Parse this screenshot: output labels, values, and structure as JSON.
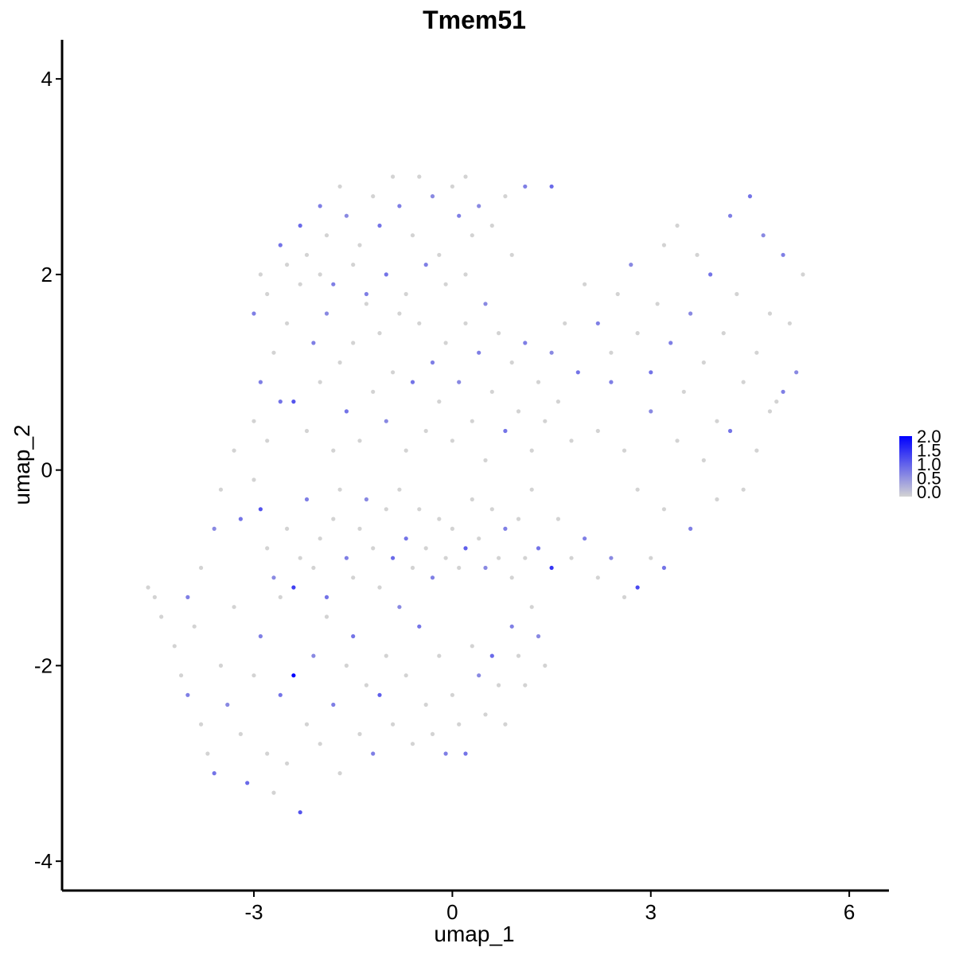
{
  "chart_data": {
    "type": "scatter",
    "title": "Tmem51",
    "xlabel": "umap_1",
    "ylabel": "umap_2",
    "xlim": [
      -5.9,
      6.6
    ],
    "ylim": [
      -4.3,
      4.4
    ],
    "x_ticks": [
      {
        "value": -3,
        "label": "-3"
      },
      {
        "value": 0,
        "label": "0"
      },
      {
        "value": 3,
        "label": "3"
      },
      {
        "value": 6,
        "label": "6"
      }
    ],
    "y_ticks": [
      {
        "value": -4,
        "label": "-4"
      },
      {
        "value": -2,
        "label": "-2"
      },
      {
        "value": 0,
        "label": "0"
      },
      {
        "value": 2,
        "label": "2"
      },
      {
        "value": 4,
        "label": "4"
      }
    ],
    "grid": false,
    "legend_position": "right",
    "color_scale": {
      "low_color": "#d3d3d3",
      "high_color": "#0000ff",
      "min": 0.0,
      "max": 2.0,
      "labels": [
        "2.0",
        "1.5",
        "1.0",
        "0.5",
        "0.0"
      ]
    },
    "points": [
      [
        -4.6,
        -1.2,
        0
      ],
      [
        -4.5,
        -1.3,
        0
      ],
      [
        -4.4,
        -1.5,
        0
      ],
      [
        -4.2,
        -1.8,
        0
      ],
      [
        -4.1,
        -2.1,
        0
      ],
      [
        -4.0,
        -2.3,
        0.8
      ],
      [
        -3.9,
        -1.6,
        0
      ],
      [
        -3.8,
        -2.6,
        0
      ],
      [
        -3.7,
        -2.9,
        0
      ],
      [
        -3.6,
        -3.1,
        0.9
      ],
      [
        -3.5,
        -2.0,
        0
      ],
      [
        -3.4,
        -2.4,
        0.7
      ],
      [
        -3.3,
        -1.4,
        0
      ],
      [
        -3.2,
        -2.7,
        0
      ],
      [
        -3.1,
        -3.2,
        1.0
      ],
      [
        -3.0,
        -2.1,
        0
      ],
      [
        -2.9,
        -1.7,
        0.8
      ],
      [
        -2.8,
        -2.9,
        0
      ],
      [
        -2.7,
        -3.3,
        0
      ],
      [
        -2.6,
        -2.3,
        0.9
      ],
      [
        -2.5,
        -3.0,
        0
      ],
      [
        -2.4,
        -2.1,
        2.0
      ],
      [
        -2.3,
        -3.5,
        1.2
      ],
      [
        -2.2,
        -2.6,
        0
      ],
      [
        -2.1,
        -1.9,
        0.7
      ],
      [
        -2.0,
        -2.8,
        0
      ],
      [
        -1.9,
        -1.5,
        0
      ],
      [
        -1.8,
        -2.4,
        0.8
      ],
      [
        -1.7,
        -3.1,
        0
      ],
      [
        -1.6,
        -2.0,
        0
      ],
      [
        -1.5,
        -1.7,
        0.9
      ],
      [
        -1.4,
        -2.7,
        0
      ],
      [
        -1.3,
        -2.2,
        0
      ],
      [
        -1.2,
        -2.9,
        0.8
      ],
      [
        -1.1,
        -2.3,
        1.1
      ],
      [
        -1.0,
        -1.9,
        0
      ],
      [
        -0.9,
        -2.6,
        0
      ],
      [
        -0.8,
        -1.4,
        0.7
      ],
      [
        -0.7,
        -2.1,
        0
      ],
      [
        -0.6,
        -2.8,
        0
      ],
      [
        -0.5,
        -1.6,
        0.9
      ],
      [
        -0.4,
        -2.4,
        0
      ],
      [
        -0.3,
        -2.7,
        0
      ],
      [
        -0.2,
        -1.9,
        0
      ],
      [
        -0.1,
        -2.9,
        0.8
      ],
      [
        0.0,
        -2.3,
        0
      ],
      [
        0.1,
        -2.6,
        0
      ],
      [
        0.2,
        -2.9,
        0.9
      ],
      [
        0.3,
        -1.8,
        0
      ],
      [
        0.4,
        -2.1,
        0.7
      ],
      [
        0.5,
        -2.5,
        0
      ],
      [
        0.6,
        -1.9,
        1.0
      ],
      [
        0.7,
        -2.2,
        0
      ],
      [
        0.8,
        -2.6,
        0
      ],
      [
        0.9,
        -1.6,
        0.8
      ],
      [
        1.0,
        -1.9,
        0
      ],
      [
        1.1,
        -2.2,
        0
      ],
      [
        1.2,
        -1.4,
        0
      ],
      [
        1.3,
        -1.7,
        0.7
      ],
      [
        1.4,
        -2.0,
        0
      ],
      [
        -4.0,
        -1.3,
        0.8
      ],
      [
        -3.8,
        -1.0,
        0
      ],
      [
        -3.6,
        -0.6,
        0.7
      ],
      [
        -3.5,
        -0.2,
        0
      ],
      [
        -3.3,
        0.2,
        0
      ],
      [
        -3.2,
        -0.5,
        0.9
      ],
      [
        -3.0,
        -0.1,
        0
      ],
      [
        -2.9,
        -0.4,
        1.2
      ],
      [
        -2.8,
        -0.8,
        0
      ],
      [
        -2.7,
        -1.1,
        0.7
      ],
      [
        -2.6,
        -1.3,
        0
      ],
      [
        -2.5,
        -0.6,
        0
      ],
      [
        -2.4,
        -1.2,
        1.4
      ],
      [
        -2.3,
        -0.9,
        0
      ],
      [
        -2.2,
        -0.3,
        0.8
      ],
      [
        -2.1,
        -1.0,
        0
      ],
      [
        -2.0,
        -0.7,
        0
      ],
      [
        -1.9,
        -1.3,
        0.9
      ],
      [
        -1.8,
        -0.5,
        0
      ],
      [
        -1.7,
        -0.2,
        0
      ],
      [
        -1.6,
        -0.9,
        0.8
      ],
      [
        -1.5,
        -1.1,
        0
      ],
      [
        -1.4,
        -0.6,
        0
      ],
      [
        -1.3,
        -0.3,
        0.7
      ],
      [
        -1.2,
        -0.8,
        0
      ],
      [
        -1.1,
        -1.2,
        0
      ],
      [
        -1.0,
        -0.4,
        0
      ],
      [
        -0.9,
        -0.9,
        1.0
      ],
      [
        -0.8,
        -0.2,
        0
      ],
      [
        -0.7,
        -0.7,
        0.9
      ],
      [
        -0.6,
        -1.0,
        0
      ],
      [
        -0.5,
        -0.4,
        0
      ],
      [
        -0.4,
        -0.8,
        0
      ],
      [
        -0.3,
        -1.1,
        0.8
      ],
      [
        -0.2,
        -0.5,
        0
      ],
      [
        -0.1,
        -0.9,
        0
      ],
      [
        0.0,
        -0.6,
        0
      ],
      [
        0.1,
        -1.0,
        0
      ],
      [
        0.2,
        -0.8,
        1.1
      ],
      [
        0.3,
        -0.3,
        0
      ],
      [
        0.4,
        -0.7,
        0
      ],
      [
        0.5,
        -1.0,
        0.7
      ],
      [
        0.6,
        -0.4,
        0
      ],
      [
        0.7,
        -0.9,
        0
      ],
      [
        0.8,
        -0.6,
        0.8
      ],
      [
        0.9,
        -1.1,
        0
      ],
      [
        1.0,
        -0.5,
        0
      ],
      [
        1.1,
        -0.9,
        0
      ],
      [
        1.2,
        -0.2,
        0
      ],
      [
        1.3,
        -0.8,
        0.9
      ],
      [
        1.5,
        -1.0,
        1.5
      ],
      [
        1.6,
        -0.5,
        0
      ],
      [
        1.8,
        -0.9,
        0
      ],
      [
        2.0,
        -0.7,
        0.8
      ],
      [
        2.2,
        -1.1,
        0
      ],
      [
        2.4,
        -0.9,
        0.7
      ],
      [
        2.6,
        -1.3,
        0
      ],
      [
        2.8,
        -1.2,
        1.3
      ],
      [
        3.0,
        -0.9,
        0
      ],
      [
        3.2,
        -1.0,
        0.9
      ],
      [
        -3.0,
        0.5,
        0
      ],
      [
        -2.9,
        0.9,
        0.8
      ],
      [
        -2.8,
        0.3,
        0
      ],
      [
        -2.7,
        1.2,
        0
      ],
      [
        -2.6,
        0.7,
        0.9
      ],
      [
        -2.5,
        1.5,
        0
      ],
      [
        -2.4,
        0.7,
        1.2
      ],
      [
        -2.3,
        1.9,
        0
      ],
      [
        -2.2,
        0.4,
        0
      ],
      [
        -2.1,
        1.3,
        0.8
      ],
      [
        -2.0,
        0.9,
        0
      ],
      [
        -1.9,
        1.6,
        0.7
      ],
      [
        -1.8,
        0.2,
        0
      ],
      [
        -1.7,
        1.1,
        0
      ],
      [
        -1.6,
        0.6,
        0.9
      ],
      [
        -1.5,
        1.3,
        0
      ],
      [
        -1.4,
        0.3,
        0
      ],
      [
        -1.3,
        1.8,
        0.8
      ],
      [
        -1.2,
        0.8,
        0
      ],
      [
        -1.1,
        1.4,
        0
      ],
      [
        -1.0,
        0.5,
        0.7
      ],
      [
        -0.9,
        1.0,
        0
      ],
      [
        -0.8,
        1.6,
        0
      ],
      [
        -0.7,
        0.2,
        0
      ],
      [
        -0.6,
        0.9,
        0.9
      ],
      [
        -0.5,
        1.5,
        0
      ],
      [
        -0.4,
        0.4,
        0
      ],
      [
        -0.3,
        1.1,
        0.8
      ],
      [
        -0.2,
        0.7,
        0
      ],
      [
        -0.1,
        1.3,
        0
      ],
      [
        0.0,
        0.3,
        0
      ],
      [
        0.1,
        0.9,
        0.7
      ],
      [
        0.2,
        1.5,
        0
      ],
      [
        0.3,
        0.5,
        0
      ],
      [
        0.4,
        1.2,
        0.8
      ],
      [
        0.5,
        0.1,
        0
      ],
      [
        0.6,
        0.8,
        0
      ],
      [
        0.7,
        1.4,
        0
      ],
      [
        0.8,
        0.4,
        0.9
      ],
      [
        0.9,
        1.1,
        0
      ],
      [
        1.0,
        0.6,
        0
      ],
      [
        1.1,
        1.3,
        0.8
      ],
      [
        1.2,
        0.2,
        0
      ],
      [
        1.3,
        0.9,
        0
      ],
      [
        1.4,
        0.5,
        0
      ],
      [
        1.5,
        1.2,
        0.7
      ],
      [
        1.6,
        0.7,
        0
      ],
      [
        1.7,
        1.5,
        0
      ],
      [
        1.8,
        0.3,
        0
      ],
      [
        1.9,
        1.0,
        0.9
      ],
      [
        -3.0,
        1.6,
        0.8
      ],
      [
        -2.9,
        2.0,
        0
      ],
      [
        -2.8,
        1.8,
        0
      ],
      [
        -2.6,
        2.3,
        0.9
      ],
      [
        -2.5,
        2.1,
        0
      ],
      [
        -2.3,
        2.5,
        1.0
      ],
      [
        -2.2,
        2.2,
        0
      ],
      [
        -2.0,
        2.7,
        0.8
      ],
      [
        -1.9,
        2.4,
        0
      ],
      [
        -1.7,
        2.9,
        0
      ],
      [
        -1.6,
        2.6,
        0.7
      ],
      [
        -1.4,
        2.3,
        0
      ],
      [
        -1.2,
        2.8,
        0
      ],
      [
        -1.1,
        2.5,
        0.9
      ],
      [
        -0.9,
        3.0,
        0
      ],
      [
        -0.8,
        2.7,
        0.8
      ],
      [
        -0.6,
        2.4,
        0
      ],
      [
        -0.5,
        3.0,
        0
      ],
      [
        -0.3,
        2.8,
        0.7
      ],
      [
        -0.2,
        2.2,
        0
      ],
      [
        0.0,
        2.9,
        0
      ],
      [
        0.1,
        2.6,
        0.8
      ],
      [
        0.2,
        3.0,
        0
      ],
      [
        0.3,
        2.4,
        0
      ],
      [
        0.4,
        2.7,
        0.7
      ],
      [
        0.6,
        2.5,
        0
      ],
      [
        0.8,
        2.8,
        0
      ],
      [
        0.9,
        2.2,
        0
      ],
      [
        1.1,
        2.9,
        0.8
      ],
      [
        1.5,
        2.9,
        1.0
      ],
      [
        -2.0,
        2.0,
        0
      ],
      [
        -1.8,
        1.9,
        0.8
      ],
      [
        -1.5,
        2.1,
        0
      ],
      [
        -1.3,
        1.7,
        0
      ],
      [
        -1.0,
        2.0,
        0.9
      ],
      [
        -0.7,
        1.8,
        0
      ],
      [
        -0.4,
        2.1,
        0.8
      ],
      [
        -0.1,
        1.9,
        0
      ],
      [
        0.2,
        2.0,
        0
      ],
      [
        0.5,
        1.7,
        0.7
      ],
      [
        2.0,
        1.9,
        0
      ],
      [
        2.2,
        1.5,
        0.8
      ],
      [
        2.4,
        1.2,
        0
      ],
      [
        2.5,
        1.8,
        0
      ],
      [
        2.7,
        2.1,
        0.7
      ],
      [
        2.8,
        1.4,
        0
      ],
      [
        3.0,
        1.0,
        0.9
      ],
      [
        3.1,
        1.7,
        0
      ],
      [
        3.2,
        2.3,
        0
      ],
      [
        3.3,
        1.3,
        0.8
      ],
      [
        3.4,
        2.5,
        0
      ],
      [
        3.5,
        0.8,
        0
      ],
      [
        3.6,
        1.6,
        0.7
      ],
      [
        3.7,
        2.2,
        0
      ],
      [
        3.8,
        1.1,
        0
      ],
      [
        3.9,
        2.0,
        0.9
      ],
      [
        4.0,
        0.5,
        0
      ],
      [
        4.1,
        1.4,
        0
      ],
      [
        4.2,
        2.6,
        0.8
      ],
      [
        4.3,
        1.8,
        0
      ],
      [
        4.4,
        0.9,
        0
      ],
      [
        4.5,
        2.8,
        0.9
      ],
      [
        4.6,
        1.2,
        0
      ],
      [
        4.7,
        2.4,
        0.7
      ],
      [
        4.8,
        1.6,
        0
      ],
      [
        4.9,
        0.7,
        0
      ],
      [
        5.0,
        2.2,
        0.8
      ],
      [
        5.1,
        1.5,
        0
      ],
      [
        5.2,
        1.0,
        0.7
      ],
      [
        5.3,
        2.0,
        0
      ],
      [
        2.2,
        0.4,
        0
      ],
      [
        2.4,
        0.9,
        0.8
      ],
      [
        2.6,
        0.2,
        0
      ],
      [
        2.8,
        -0.2,
        0
      ],
      [
        3.0,
        0.6,
        0.7
      ],
      [
        3.2,
        -0.4,
        0
      ],
      [
        3.4,
        0.3,
        0
      ],
      [
        3.6,
        -0.6,
        0.8
      ],
      [
        3.8,
        0.1,
        0
      ],
      [
        4.0,
        -0.3,
        0
      ],
      [
        4.2,
        0.4,
        0.9
      ],
      [
        4.4,
        -0.2,
        0
      ],
      [
        4.6,
        0.2,
        0
      ],
      [
        4.8,
        0.6,
        0
      ],
      [
        5.0,
        0.8,
        0.8
      ]
    ]
  }
}
